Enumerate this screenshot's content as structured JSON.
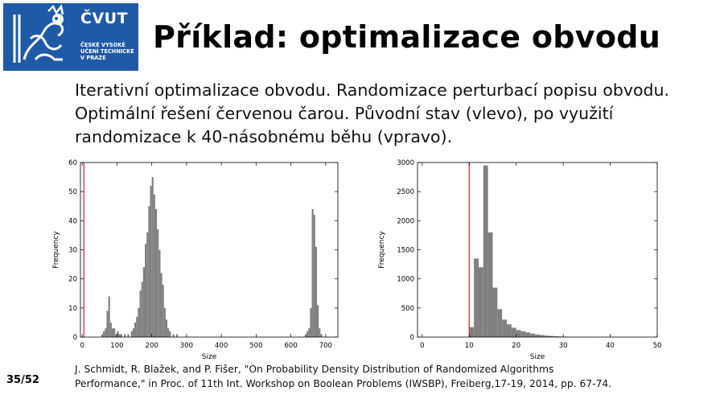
{
  "logo": {
    "brand": "ČVUT",
    "subtitle": "ČESKÉ VYSOKÉ\nUČENÍ TECHNICKÉ\nV PRAZE"
  },
  "slide": {
    "title": "Příklad: optimalizace obvodu",
    "intro": "Iterativní optimalizace obvodu. Randomizace perturbací popisu obvodu. Optimální řešení červenou čarou. Původní stav (vlevo), po využití randomizace k 40-násobnému běhu (vpravo).",
    "reference_line1": "J. Schmidt, R. Blažek, and P. Fišer, \"On Probability Density Distribution of Randomized Algorithms",
    "reference_line2": "Performance,\" in Proc. of 11th Int. Workshop on Boolean Problems (IWSBP), Freiberg,17-19, 2014, pp. 67-74.",
    "page": "35/52"
  },
  "colors": {
    "bar": "#808080",
    "optimum": "#e03030",
    "logo_bg": "#1f5aa6"
  },
  "chart_data": [
    {
      "type": "bar",
      "title": "",
      "xlabel": "Size",
      "ylabel": "Frequency",
      "xlim": [
        -5,
        735
      ],
      "ylim": [
        0,
        60
      ],
      "xticks": [
        0,
        100,
        200,
        300,
        400,
        500,
        600,
        700
      ],
      "yticks": [
        0,
        10,
        20,
        30,
        40,
        50,
        60
      ],
      "optimum_x": 5,
      "bin_width": 5,
      "bins": [
        [
          55,
          1
        ],
        [
          60,
          2
        ],
        [
          65,
          3
        ],
        [
          70,
          9
        ],
        [
          75,
          14
        ],
        [
          80,
          5
        ],
        [
          85,
          3
        ],
        [
          90,
          3
        ],
        [
          95,
          1
        ],
        [
          100,
          2
        ],
        [
          105,
          1
        ],
        [
          110,
          1
        ],
        [
          120,
          1
        ],
        [
          130,
          1
        ],
        [
          140,
          2
        ],
        [
          145,
          3
        ],
        [
          150,
          5
        ],
        [
          155,
          7
        ],
        [
          160,
          10
        ],
        [
          165,
          16
        ],
        [
          170,
          19
        ],
        [
          175,
          24
        ],
        [
          180,
          32
        ],
        [
          185,
          36
        ],
        [
          190,
          45
        ],
        [
          195,
          52
        ],
        [
          200,
          55
        ],
        [
          205,
          49
        ],
        [
          210,
          44
        ],
        [
          215,
          37
        ],
        [
          220,
          30
        ],
        [
          225,
          22
        ],
        [
          230,
          18
        ],
        [
          235,
          10
        ],
        [
          240,
          6
        ],
        [
          245,
          3
        ],
        [
          250,
          2
        ],
        [
          260,
          1
        ],
        [
          270,
          1
        ],
        [
          640,
          1
        ],
        [
          645,
          2
        ],
        [
          650,
          3
        ],
        [
          655,
          10
        ],
        [
          660,
          44
        ],
        [
          665,
          42
        ],
        [
          670,
          31
        ],
        [
          675,
          11
        ],
        [
          680,
          3
        ],
        [
          685,
          1
        ]
      ]
    },
    {
      "type": "bar",
      "title": "",
      "xlabel": "Size",
      "ylabel": "Frequency",
      "xlim": [
        -1,
        50
      ],
      "ylim": [
        0,
        3000
      ],
      "xticks": [
        0,
        10,
        20,
        30,
        40,
        50
      ],
      "yticks": [
        0,
        500,
        1000,
        1500,
        2000,
        2500,
        3000
      ],
      "optimum_x": 10,
      "bin_width": 1,
      "bins": [
        [
          10,
          170
        ],
        [
          11,
          1350
        ],
        [
          12,
          1200
        ],
        [
          13,
          2950
        ],
        [
          14,
          1800
        ],
        [
          15,
          850
        ],
        [
          16,
          480
        ],
        [
          17,
          300
        ],
        [
          18,
          220
        ],
        [
          19,
          160
        ],
        [
          20,
          120
        ],
        [
          21,
          100
        ],
        [
          22,
          80
        ],
        [
          23,
          60
        ],
        [
          24,
          45
        ],
        [
          25,
          35
        ],
        [
          26,
          25
        ],
        [
          27,
          20
        ],
        [
          28,
          15
        ],
        [
          29,
          10
        ],
        [
          30,
          8
        ],
        [
          31,
          6
        ],
        [
          32,
          5
        ],
        [
          33,
          3
        ],
        [
          34,
          2
        ],
        [
          35,
          2
        ],
        [
          36,
          1
        ],
        [
          37,
          1
        ]
      ]
    }
  ]
}
